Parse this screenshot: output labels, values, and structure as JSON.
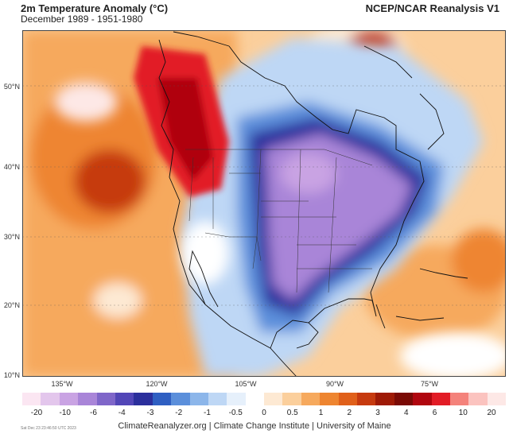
{
  "header": {
    "title": "2m Temperature Anomaly (°C)",
    "subtitle": "December 1989 - 1951-1980",
    "source": "NCEP/NCAR Reanalysis V1"
  },
  "map": {
    "lat_labels": [
      "50°N",
      "40°N",
      "30°N",
      "20°N",
      "10°N"
    ],
    "lon_labels": [
      "135°W",
      "120°W",
      "105°W",
      "90°W",
      "75°W"
    ]
  },
  "colorbar": {
    "labels": [
      "-20",
      "-10",
      "-6",
      "-4",
      "-3",
      "-2",
      "-1",
      "-0.5",
      "0",
      "0.5",
      "1",
      "2",
      "3",
      "4",
      "6",
      "10",
      "20"
    ],
    "colors": [
      "#fbe6f2",
      "#e3c6ec",
      "#c9a3e3",
      "#a985d8",
      "#7f66c9",
      "#5246b7",
      "#2b2f9c",
      "#2f5fc2",
      "#5b8fdb",
      "#8cb6ea",
      "#bed7f5",
      "#e6f0fb",
      "#ffffff",
      "#fde9d3",
      "#fbcf9c",
      "#f6a95d",
      "#ee8530",
      "#e0601a",
      "#c63a0f",
      "#9e1a06",
      "#7a0a05",
      "#b0060f",
      "#e21c26",
      "#f4827b",
      "#fbc3bf",
      "#fde8e6"
    ]
  },
  "footer": {
    "credits": "ClimateReanalyzer.org | Climate Change Institute | University of Maine",
    "timestamp": "Sat Dec 23 23:46:50 UTC 2023"
  }
}
